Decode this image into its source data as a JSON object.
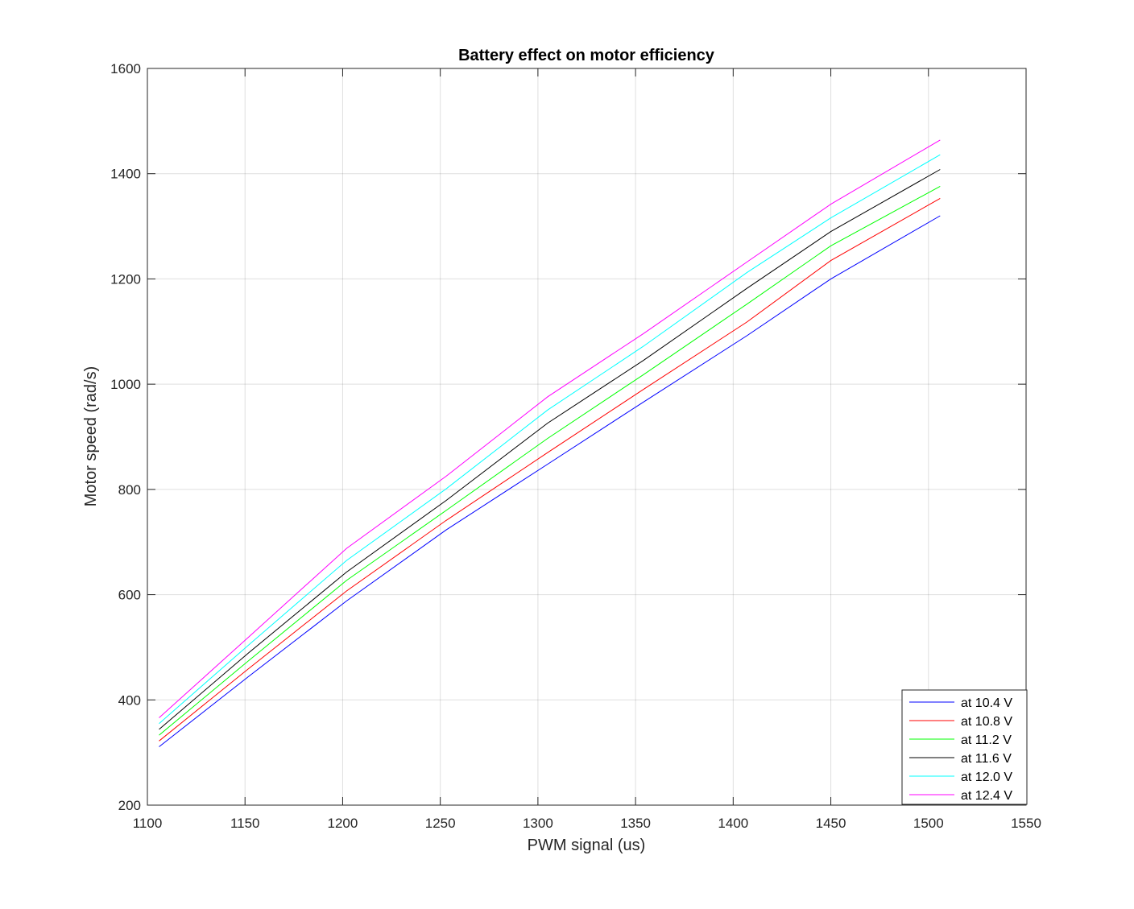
{
  "chart_data": {
    "type": "line",
    "title": "Battery effect on motor efficiency",
    "xlabel": "PWM signal (us)",
    "ylabel": "Motor speed (rad/s)",
    "xlim": [
      1100,
      1550
    ],
    "ylim": [
      200,
      1600
    ],
    "xticks": [
      1100,
      1150,
      1200,
      1250,
      1300,
      1350,
      1400,
      1450,
      1500,
      1550
    ],
    "yticks": [
      200,
      400,
      600,
      800,
      1000,
      1200,
      1400,
      1600
    ],
    "grid": true,
    "legend_position": "bottom-right",
    "x": [
      1106,
      1152,
      1202,
      1253,
      1305,
      1354,
      1407,
      1450,
      1506
    ],
    "series": [
      {
        "name": "at 10.4 V",
        "color": "#0000ff",
        "values": [
          311,
          445,
          588,
          723,
          848,
          966,
          1092,
          1200,
          1320
        ]
      },
      {
        "name": "at 10.8 V",
        "color": "#ff0000",
        "values": [
          322,
          460,
          607,
          741,
          870,
          990,
          1118,
          1235,
          1353
        ]
      },
      {
        "name": "at 11.2 V",
        "color": "#00ff00",
        "values": [
          333,
          475,
          627,
          760,
          897,
          1018,
          1152,
          1263,
          1376
        ]
      },
      {
        "name": "at 11.6 V",
        "color": "#000000",
        "values": [
          344,
          490,
          643,
          779,
          926,
          1045,
          1182,
          1290,
          1408
        ]
      },
      {
        "name": "at 12.0 V",
        "color": "#00ffff",
        "values": [
          355,
          505,
          665,
          801,
          951,
          1072,
          1212,
          1316,
          1436
        ]
      },
      {
        "name": "at 12.4 V",
        "color": "#ff00ff",
        "values": [
          366,
          520,
          688,
          825,
          976,
          1096,
          1232,
          1342,
          1464
        ]
      }
    ]
  }
}
